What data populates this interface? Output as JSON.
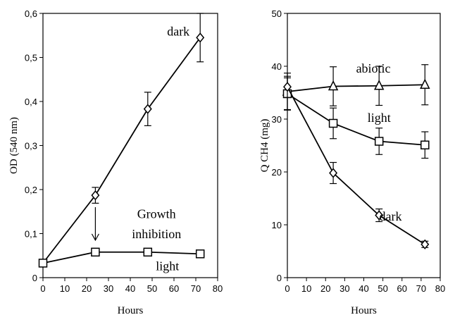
{
  "chart_data": [
    {
      "type": "line",
      "xlabel": "Hours",
      "ylabel": "OD (540 nm)",
      "xlim": [
        0,
        80
      ],
      "ylim": [
        0,
        0.6
      ],
      "xticks": [
        0,
        10,
        20,
        30,
        40,
        50,
        60,
        70,
        80
      ],
      "yticks": [
        0,
        0.1,
        0.2,
        0.3,
        0.4,
        0.5,
        0.6
      ],
      "xtick_labels": [
        "0",
        "10",
        "20",
        "30",
        "40",
        "50",
        "60",
        "70",
        "80"
      ],
      "ytick_labels": [
        "0",
        "0,1",
        "0,2",
        "0,3",
        "0,4",
        "0,5",
        "0,6"
      ],
      "grid": false,
      "series": [
        {
          "name": "dark",
          "marker": "diamond",
          "points": [
            {
              "x": 0,
              "y": 0.033,
              "err": 0
            },
            {
              "x": 24,
              "y": 0.187,
              "err": 0.018
            },
            {
              "x": 48,
              "y": 0.383,
              "err": 0.038
            },
            {
              "x": 72,
              "y": 0.545,
              "err": 0.055
            }
          ]
        },
        {
          "name": "light",
          "marker": "square",
          "points": [
            {
              "x": 0,
              "y": 0.033,
              "err": 0
            },
            {
              "x": 24,
              "y": 0.058,
              "err": 0
            },
            {
              "x": 48,
              "y": 0.058,
              "err": 0
            },
            {
              "x": 72,
              "y": 0.054,
              "err": 0
            }
          ]
        }
      ],
      "annotations": [
        {
          "text": "Growth",
          "x": 52,
          "y": 0.135
        },
        {
          "text": "inhibition",
          "x": 52,
          "y": 0.09
        },
        {
          "text": "light",
          "x": 57,
          "y": 0.017
        },
        {
          "text": "dark",
          "x": 62,
          "y": 0.55
        }
      ],
      "arrow": {
        "x": 24,
        "y_from": 0.16,
        "y_to": 0.085
      }
    },
    {
      "type": "line",
      "xlabel": "Hours",
      "ylabel": "Q CH4 (mg)",
      "xlim": [
        0,
        80
      ],
      "ylim": [
        0,
        50
      ],
      "xticks": [
        0,
        10,
        20,
        30,
        40,
        50,
        60,
        70,
        80
      ],
      "yticks": [
        0,
        10,
        20,
        30,
        40,
        50
      ],
      "xtick_labels": [
        "0",
        "10",
        "20",
        "30",
        "40",
        "50",
        "60",
        "70",
        "80"
      ],
      "ytick_labels": [
        "0",
        "10",
        "20",
        "30",
        "40",
        "50"
      ],
      "grid": false,
      "series": [
        {
          "name": "abiotic",
          "marker": "triangle",
          "points": [
            {
              "x": 0,
              "y": 35.2,
              "err": 3.5
            },
            {
              "x": 24,
              "y": 36.2,
              "err": 3.7
            },
            {
              "x": 48,
              "y": 36.3,
              "err": 3.7
            },
            {
              "x": 72,
              "y": 36.5,
              "err": 3.8
            }
          ]
        },
        {
          "name": "light",
          "marker": "square",
          "points": [
            {
              "x": 0,
              "y": 34.8,
              "err": 3.0
            },
            {
              "x": 24,
              "y": 29.2,
              "err": 2.9
            },
            {
              "x": 48,
              "y": 25.8,
              "err": 2.5
            },
            {
              "x": 72,
              "y": 25.1,
              "err": 2.5
            }
          ]
        },
        {
          "name": "dark",
          "marker": "diamond",
          "points": [
            {
              "x": 0,
              "y": 36.1,
              "err": 2.0
            },
            {
              "x": 24,
              "y": 19.8,
              "err": 2.0
            },
            {
              "x": 48,
              "y": 11.8,
              "err": 1.2
            },
            {
              "x": 72,
              "y": 6.3,
              "err": 0.6
            }
          ]
        }
      ],
      "annotations": [
        {
          "text": "abiotic",
          "x": 45,
          "y": 38.8
        },
        {
          "text": "light",
          "x": 48,
          "y": 29.5
        },
        {
          "text": "dark",
          "x": 54,
          "y": 10.8
        }
      ]
    }
  ]
}
